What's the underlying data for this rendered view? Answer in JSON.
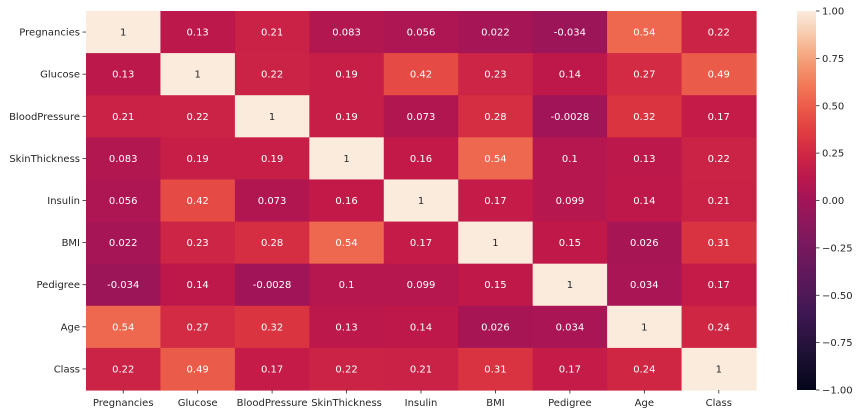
{
  "chart_data": {
    "type": "heatmap",
    "title": "",
    "xlabel": "",
    "ylabel": "",
    "x_categories": [
      "Pregnancies",
      "Glucose",
      "BloodPressure",
      "SkinThickness",
      "Insulin",
      "BMI",
      "Pedigree",
      "Age",
      "Class"
    ],
    "y_categories": [
      "Pregnancies",
      "Glucose",
      "BloodPressure",
      "SkinThickness",
      "Insulin",
      "BMI",
      "Pedigree",
      "Age",
      "Class"
    ],
    "values": [
      [
        1,
        0.13,
        0.21,
        0.083,
        0.056,
        0.022,
        -0.034,
        0.54,
        0.22
      ],
      [
        0.13,
        1,
        0.22,
        0.19,
        0.42,
        0.23,
        0.14,
        0.27,
        0.49
      ],
      [
        0.21,
        0.22,
        1,
        0.19,
        0.073,
        0.28,
        -0.0028,
        0.32,
        0.17
      ],
      [
        0.083,
        0.19,
        0.19,
        1,
        0.16,
        0.54,
        0.1,
        0.13,
        0.22
      ],
      [
        0.056,
        0.42,
        0.073,
        0.16,
        1,
        0.17,
        0.099,
        0.14,
        0.21
      ],
      [
        0.022,
        0.23,
        0.28,
        0.54,
        0.17,
        1,
        0.15,
        0.026,
        0.31
      ],
      [
        -0.034,
        0.14,
        -0.0028,
        0.1,
        0.099,
        0.15,
        1,
        0.034,
        0.17
      ],
      [
        0.54,
        0.27,
        0.32,
        0.13,
        0.14,
        0.026,
        0.034,
        1,
        0.24
      ],
      [
        0.22,
        0.49,
        0.17,
        0.22,
        0.21,
        0.31,
        0.17,
        0.24,
        1
      ]
    ],
    "value_labels": [
      [
        "1",
        "0.13",
        "0.21",
        "0.083",
        "0.056",
        "0.022",
        "-0.034",
        "0.54",
        "0.22"
      ],
      [
        "0.13",
        "1",
        "0.22",
        "0.19",
        "0.42",
        "0.23",
        "0.14",
        "0.27",
        "0.49"
      ],
      [
        "0.21",
        "0.22",
        "1",
        "0.19",
        "0.073",
        "0.28",
        "-0.0028",
        "0.32",
        "0.17"
      ],
      [
        "0.083",
        "0.19",
        "0.19",
        "1",
        "0.16",
        "0.54",
        "0.1",
        "0.13",
        "0.22"
      ],
      [
        "0.056",
        "0.42",
        "0.073",
        "0.16",
        "1",
        "0.17",
        "0.099",
        "0.14",
        "0.21"
      ],
      [
        "0.022",
        "0.23",
        "0.28",
        "0.54",
        "0.17",
        "1",
        "0.15",
        "0.026",
        "0.31"
      ],
      [
        "-0.034",
        "0.14",
        "-0.0028",
        "0.1",
        "0.099",
        "0.15",
        "1",
        "0.034",
        "0.17"
      ],
      [
        "0.54",
        "0.27",
        "0.32",
        "0.13",
        "0.14",
        "0.026",
        "0.034",
        "1",
        "0.24"
      ],
      [
        "0.22",
        "0.49",
        "0.17",
        "0.22",
        "0.21",
        "0.31",
        "0.17",
        "0.24",
        "1"
      ]
    ],
    "colorbar": {
      "vmin": -1.0,
      "vmax": 1.0,
      "ticks": [
        1.0,
        0.75,
        0.5,
        0.25,
        0.0,
        -0.25,
        -0.5,
        -0.75,
        -1.0
      ],
      "tick_labels": [
        "1.00",
        "0.75",
        "0.50",
        "0.25",
        "0.00",
        "−0.25",
        "−0.50",
        "−0.75",
        "−1.00"
      ],
      "colormap": "rocket"
    },
    "grid": false,
    "legend": "colorbar-right"
  }
}
